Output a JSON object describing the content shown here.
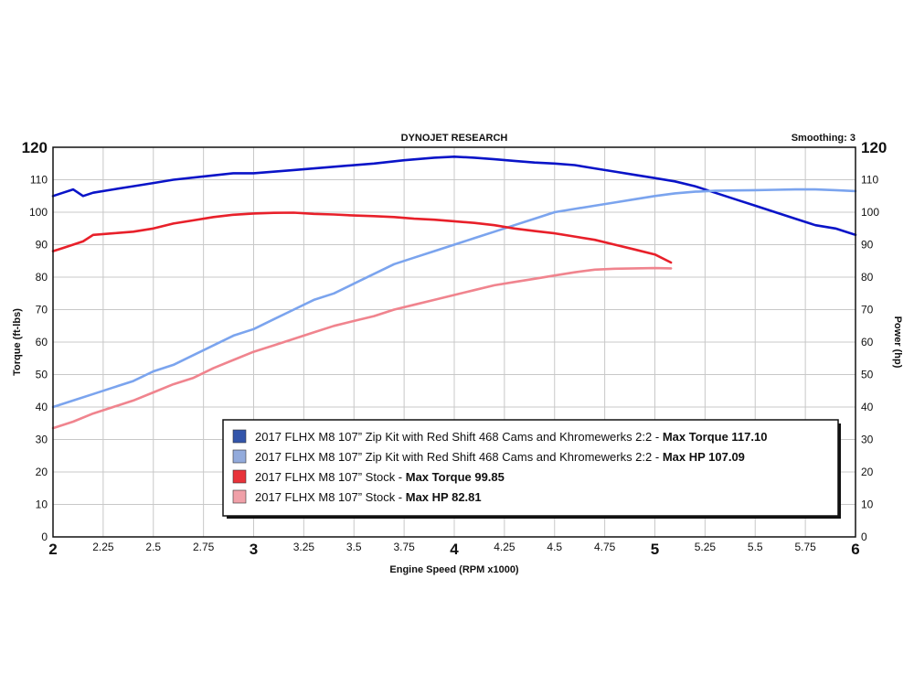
{
  "chart_data": {
    "type": "line",
    "header": "DYNOJET RESEARCH",
    "smoothing": "Smoothing: 3",
    "xlabel": "Engine Speed (RPM x1000)",
    "ylabel_left": "Torque (ft-lbs)",
    "ylabel_right": "Power (hp)",
    "xlim": [
      2,
      6
    ],
    "ylim": [
      0,
      120
    ],
    "x_ticks": [
      {
        "v": 2,
        "label": "2",
        "major": true
      },
      {
        "v": 2.25,
        "label": "2.25",
        "major": false
      },
      {
        "v": 2.5,
        "label": "2.5",
        "major": false
      },
      {
        "v": 2.75,
        "label": "2.75",
        "major": false
      },
      {
        "v": 3,
        "label": "3",
        "major": true
      },
      {
        "v": 3.25,
        "label": "3.25",
        "major": false
      },
      {
        "v": 3.5,
        "label": "3.5",
        "major": false
      },
      {
        "v": 3.75,
        "label": "3.75",
        "major": false
      },
      {
        "v": 4,
        "label": "4",
        "major": true
      },
      {
        "v": 4.25,
        "label": "4.25",
        "major": false
      },
      {
        "v": 4.5,
        "label": "4.5",
        "major": false
      },
      {
        "v": 4.75,
        "label": "4.75",
        "major": false
      },
      {
        "v": 5,
        "label": "5",
        "major": true
      },
      {
        "v": 5.25,
        "label": "5.25",
        "major": false
      },
      {
        "v": 5.5,
        "label": "5.5",
        "major": false
      },
      {
        "v": 5.75,
        "label": "5.75",
        "major": false
      },
      {
        "v": 6,
        "label": "6",
        "major": true
      }
    ],
    "y_ticks": [
      {
        "v": 0,
        "label": "0",
        "major": false
      },
      {
        "v": 10,
        "label": "10",
        "major": false
      },
      {
        "v": 20,
        "label": "20",
        "major": false
      },
      {
        "v": 30,
        "label": "30",
        "major": false
      },
      {
        "v": 40,
        "label": "40",
        "major": false
      },
      {
        "v": 50,
        "label": "50",
        "major": false
      },
      {
        "v": 60,
        "label": "60",
        "major": false
      },
      {
        "v": 70,
        "label": "70",
        "major": false
      },
      {
        "v": 80,
        "label": "80",
        "major": false
      },
      {
        "v": 90,
        "label": "90",
        "major": false
      },
      {
        "v": 100,
        "label": "100",
        "major": false
      },
      {
        "v": 110,
        "label": "110",
        "major": false
      },
      {
        "v": 120,
        "label": "120",
        "major": true
      }
    ],
    "grid": true,
    "legend_position": "bottom-right",
    "series": [
      {
        "name": "2017 FLHX M8 107” Zip Kit with Red Shift 468 Cams and Khromewerks 2:2 - ",
        "bold": "Max Torque 117.10",
        "color": "#0a14c8",
        "legend_color": "#3355aa",
        "x": [
          2.0,
          2.05,
          2.1,
          2.15,
          2.2,
          2.3,
          2.4,
          2.5,
          2.6,
          2.75,
          2.9,
          3.0,
          3.2,
          3.4,
          3.6,
          3.75,
          3.9,
          4.0,
          4.1,
          4.2,
          4.3,
          4.4,
          4.5,
          4.6,
          4.7,
          4.8,
          4.9,
          5.0,
          5.1,
          5.2,
          5.3,
          5.4,
          5.5,
          5.6,
          5.7,
          5.8,
          5.9,
          6.0
        ],
        "y": [
          105,
          106,
          107,
          105,
          106,
          107,
          108,
          109,
          110,
          111,
          112,
          112,
          113,
          114,
          115,
          116,
          116.8,
          117.1,
          116.8,
          116.3,
          115.8,
          115.3,
          115,
          114.5,
          113.5,
          112.5,
          111.5,
          110.5,
          109.5,
          108,
          106,
          104,
          102,
          100,
          98,
          96,
          95,
          93
        ]
      },
      {
        "name": "2017 FLHX M8 107” Zip Kit with Red Shift 468 Cams and Khromewerks 2:2 - ",
        "bold": "Max HP 107.09",
        "color": "#7ba4ee",
        "legend_color": "#93abdc",
        "x": [
          2.0,
          2.1,
          2.2,
          2.3,
          2.4,
          2.5,
          2.6,
          2.7,
          2.8,
          2.9,
          3.0,
          3.1,
          3.2,
          3.3,
          3.4,
          3.5,
          3.6,
          3.7,
          3.8,
          3.9,
          4.0,
          4.1,
          4.2,
          4.3,
          4.4,
          4.5,
          4.6,
          4.7,
          4.8,
          4.9,
          5.0,
          5.1,
          5.2,
          5.3,
          5.4,
          5.5,
          5.6,
          5.7,
          5.8,
          5.9,
          6.0
        ],
        "y": [
          40,
          42,
          44,
          46,
          48,
          51,
          53,
          56,
          59,
          62,
          64,
          67,
          70,
          73,
          75,
          78,
          81,
          84,
          86,
          88,
          90,
          92,
          94,
          96,
          98,
          100,
          101,
          102,
          103,
          104,
          105,
          105.8,
          106.3,
          106.6,
          106.7,
          106.8,
          106.9,
          107,
          107,
          106.8,
          106.5
        ]
      },
      {
        "name": "2017 FLHX M8 107” Stock - ",
        "bold": "Max Torque 99.85",
        "color": "#e8202a",
        "legend_color": "#e8333a",
        "x": [
          2.0,
          2.05,
          2.1,
          2.15,
          2.2,
          2.3,
          2.4,
          2.5,
          2.6,
          2.7,
          2.8,
          2.9,
          3.0,
          3.1,
          3.2,
          3.3,
          3.4,
          3.5,
          3.6,
          3.7,
          3.8,
          3.9,
          4.0,
          4.1,
          4.2,
          4.3,
          4.4,
          4.5,
          4.6,
          4.7,
          4.8,
          4.9,
          5.0,
          5.08
        ],
        "y": [
          88,
          89,
          90,
          91,
          93,
          93.5,
          94,
          95,
          96.5,
          97.5,
          98.5,
          99.2,
          99.6,
          99.8,
          99.85,
          99.5,
          99.3,
          99,
          98.8,
          98.5,
          98,
          97.7,
          97.2,
          96.7,
          96,
          95,
          94.2,
          93.5,
          92.5,
          91.5,
          90,
          88.5,
          87,
          84.5
        ]
      },
      {
        "name": "2017 FLHX M8 107” Stock - ",
        "bold": "Max HP 82.81",
        "color": "#f0848e",
        "legend_color": "#f0a0a8",
        "x": [
          2.0,
          2.1,
          2.2,
          2.3,
          2.4,
          2.5,
          2.6,
          2.7,
          2.8,
          2.9,
          3.0,
          3.1,
          3.2,
          3.3,
          3.4,
          3.5,
          3.6,
          3.7,
          3.8,
          3.9,
          4.0,
          4.1,
          4.2,
          4.3,
          4.4,
          4.5,
          4.6,
          4.7,
          4.8,
          4.9,
          5.0,
          5.08
        ],
        "y": [
          33.5,
          35.5,
          38,
          40,
          42,
          44.5,
          47,
          49,
          52,
          54.5,
          57,
          59,
          61,
          63,
          65,
          66.5,
          68,
          70,
          71.5,
          73,
          74.5,
          76,
          77.5,
          78.5,
          79.5,
          80.5,
          81.5,
          82.3,
          82.6,
          82.7,
          82.8,
          82.7
        ]
      }
    ]
  }
}
